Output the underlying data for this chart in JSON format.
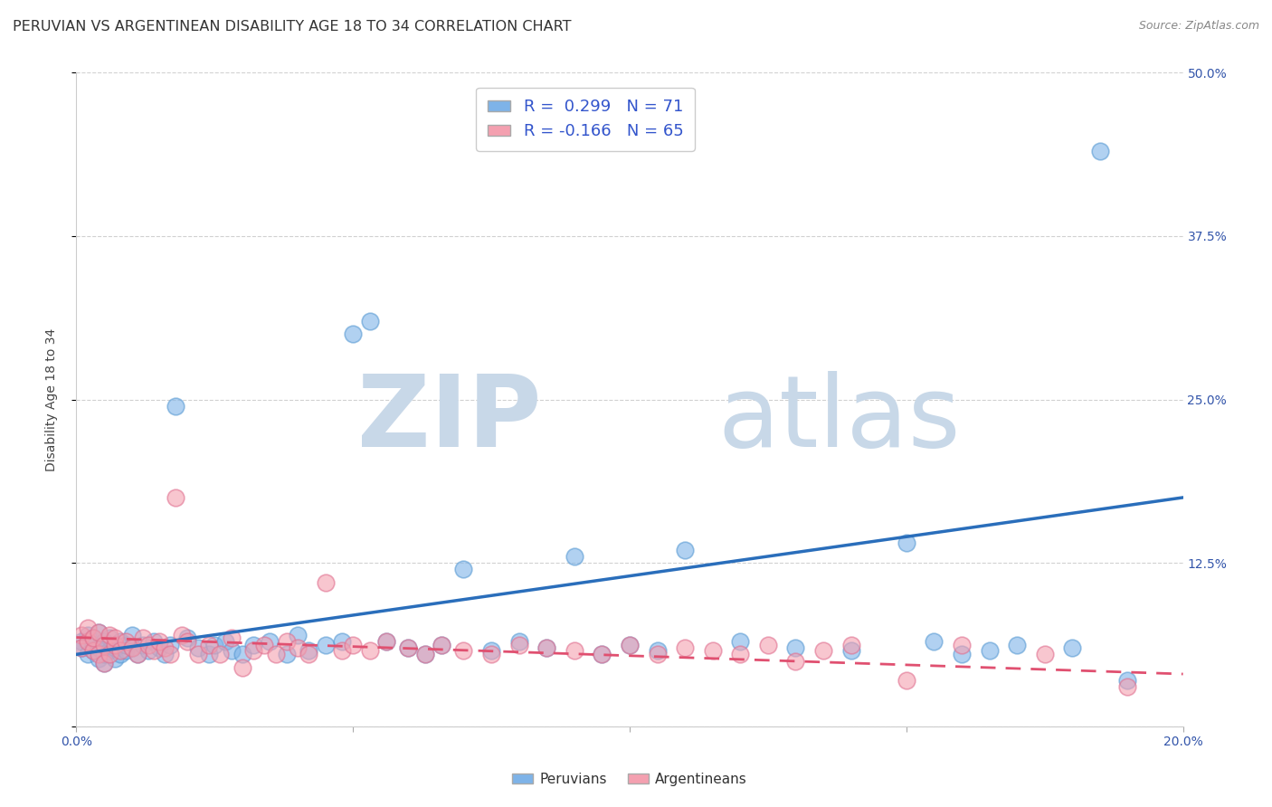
{
  "title": "PERUVIAN VS ARGENTINEAN DISABILITY AGE 18 TO 34 CORRELATION CHART",
  "source": "Source: ZipAtlas.com",
  "ylabel": "Disability Age 18 to 34",
  "xlim": [
    0.0,
    0.2
  ],
  "ylim": [
    0.0,
    0.5
  ],
  "xtick_vals": [
    0.0,
    0.05,
    0.1,
    0.15,
    0.2
  ],
  "xtick_labels": [
    "0.0%",
    "",
    "",
    "",
    "20.0%"
  ],
  "ytick_vals": [
    0.0,
    0.125,
    0.25,
    0.375,
    0.5
  ],
  "ytick_labels_right": [
    "",
    "12.5%",
    "25.0%",
    "37.5%",
    "50.0%"
  ],
  "peruvian_color": "#7EB3E8",
  "peruvian_edge_color": "#5A9BD4",
  "argentinean_color": "#F4A0B0",
  "argentinean_edge_color": "#E07090",
  "peruvian_line_color": "#2A6EBB",
  "argentinean_line_color": "#E05070",
  "peruvian_R": 0.299,
  "peruvian_N": 71,
  "argentinean_R": -0.166,
  "argentinean_N": 65,
  "peruvian_x": [
    0.001,
    0.001,
    0.002,
    0.002,
    0.003,
    0.003,
    0.003,
    0.004,
    0.004,
    0.004,
    0.005,
    0.005,
    0.005,
    0.006,
    0.006,
    0.007,
    0.007,
    0.008,
    0.008,
    0.009,
    0.009,
    0.01,
    0.01,
    0.011,
    0.012,
    0.013,
    0.014,
    0.015,
    0.016,
    0.017,
    0.018,
    0.02,
    0.022,
    0.024,
    0.025,
    0.027,
    0.028,
    0.03,
    0.032,
    0.035,
    0.038,
    0.04,
    0.042,
    0.045,
    0.048,
    0.05,
    0.053,
    0.056,
    0.06,
    0.063,
    0.066,
    0.07,
    0.075,
    0.08,
    0.085,
    0.09,
    0.095,
    0.1,
    0.105,
    0.11,
    0.12,
    0.13,
    0.14,
    0.15,
    0.16,
    0.17,
    0.18,
    0.185,
    0.19,
    0.155,
    0.165
  ],
  "peruvian_y": [
    0.065,
    0.06,
    0.055,
    0.07,
    0.058,
    0.062,
    0.068,
    0.052,
    0.06,
    0.072,
    0.048,
    0.065,
    0.055,
    0.058,
    0.068,
    0.052,
    0.06,
    0.055,
    0.065,
    0.058,
    0.062,
    0.06,
    0.07,
    0.055,
    0.062,
    0.058,
    0.065,
    0.06,
    0.055,
    0.062,
    0.245,
    0.068,
    0.06,
    0.055,
    0.062,
    0.065,
    0.058,
    0.055,
    0.062,
    0.065,
    0.055,
    0.07,
    0.058,
    0.062,
    0.065,
    0.3,
    0.31,
    0.065,
    0.06,
    0.055,
    0.062,
    0.12,
    0.058,
    0.065,
    0.06,
    0.13,
    0.055,
    0.062,
    0.058,
    0.135,
    0.065,
    0.06,
    0.058,
    0.14,
    0.055,
    0.062,
    0.06,
    0.44,
    0.035,
    0.065,
    0.058
  ],
  "argentinean_x": [
    0.001,
    0.001,
    0.002,
    0.002,
    0.003,
    0.003,
    0.004,
    0.004,
    0.005,
    0.005,
    0.006,
    0.006,
    0.007,
    0.007,
    0.008,
    0.009,
    0.01,
    0.011,
    0.012,
    0.013,
    0.014,
    0.015,
    0.016,
    0.017,
    0.018,
    0.019,
    0.02,
    0.022,
    0.024,
    0.026,
    0.028,
    0.03,
    0.032,
    0.034,
    0.036,
    0.038,
    0.04,
    0.042,
    0.045,
    0.048,
    0.05,
    0.053,
    0.056,
    0.06,
    0.063,
    0.066,
    0.07,
    0.075,
    0.08,
    0.085,
    0.09,
    0.095,
    0.1,
    0.105,
    0.11,
    0.115,
    0.12,
    0.125,
    0.13,
    0.135,
    0.14,
    0.15,
    0.16,
    0.175,
    0.19
  ],
  "argentinean_y": [
    0.07,
    0.06,
    0.065,
    0.075,
    0.058,
    0.068,
    0.055,
    0.072,
    0.062,
    0.048,
    0.07,
    0.055,
    0.062,
    0.068,
    0.058,
    0.065,
    0.06,
    0.055,
    0.068,
    0.062,
    0.058,
    0.065,
    0.06,
    0.055,
    0.175,
    0.07,
    0.065,
    0.055,
    0.062,
    0.055,
    0.068,
    0.045,
    0.058,
    0.062,
    0.055,
    0.065,
    0.06,
    0.055,
    0.11,
    0.058,
    0.062,
    0.058,
    0.065,
    0.06,
    0.055,
    0.062,
    0.058,
    0.055,
    0.062,
    0.06,
    0.058,
    0.055,
    0.062,
    0.055,
    0.06,
    0.058,
    0.055,
    0.062,
    0.05,
    0.058,
    0.062,
    0.035,
    0.062,
    0.055,
    0.03
  ],
  "peruvian_line_x0": 0.0,
  "peruvian_line_y0": 0.055,
  "peruvian_line_x1": 0.2,
  "peruvian_line_y1": 0.175,
  "argentinean_line_x0": 0.0,
  "argentinean_line_y0": 0.068,
  "argentinean_line_x1": 0.2,
  "argentinean_line_y1": 0.04,
  "background_color": "#ffffff",
  "grid_color": "#cccccc",
  "title_fontsize": 11.5,
  "label_fontsize": 10,
  "tick_fontsize": 10,
  "watermark_text_zip": "ZIP",
  "watermark_text_atlas": "atlas",
  "watermark_color": "#c8d8e8",
  "watermark_fontsize_zip": 80,
  "watermark_fontsize_atlas": 80
}
